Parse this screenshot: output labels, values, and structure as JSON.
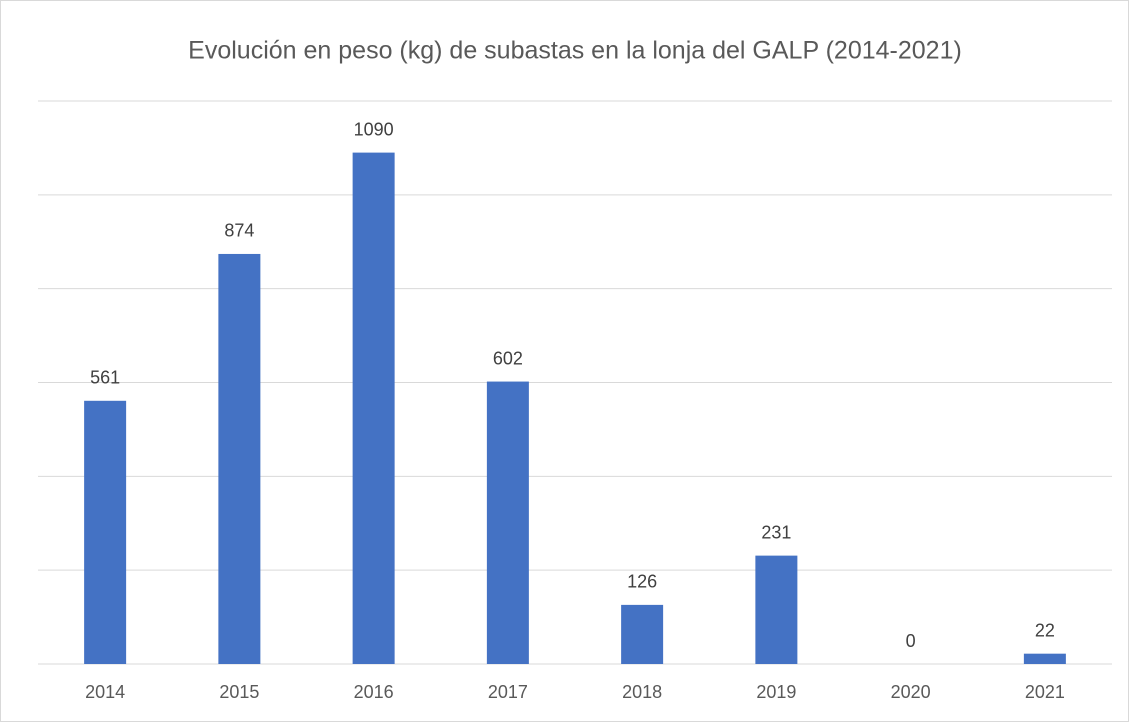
{
  "chart_data": {
    "type": "bar",
    "title": "Evolución en peso (kg) de subastas en la lonja del GALP (2014-2021)",
    "categories": [
      "2014",
      "2015",
      "2016",
      "2017",
      "2018",
      "2019",
      "2020",
      "2021"
    ],
    "values": [
      561,
      874,
      1090,
      602,
      126,
      231,
      0,
      22
    ],
    "color": "#4472c4",
    "ylim": [
      0,
      1200
    ],
    "yticks": [
      0,
      200,
      400,
      600,
      800,
      1000,
      1200
    ],
    "grid": true
  }
}
